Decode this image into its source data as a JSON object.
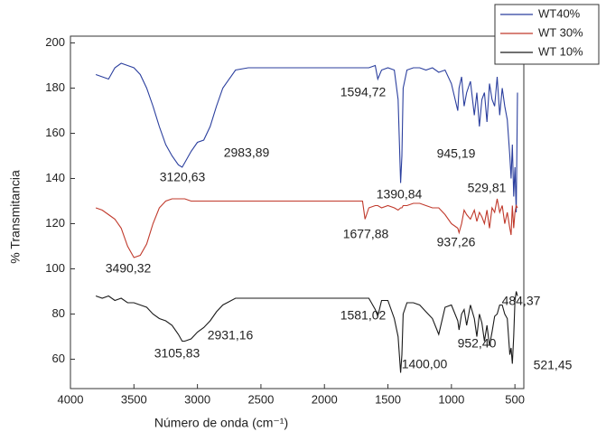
{
  "chart_data": {
    "type": "line",
    "x_label": "Número de onda (cm⁻¹)",
    "y_label": "% Transmitancia",
    "x": [
      3800,
      3750,
      3700,
      3650,
      3600,
      3550,
      3500,
      3450,
      3400,
      3350,
      3300,
      3250,
      3200,
      3150,
      3120,
      3100,
      3050,
      3000,
      2950,
      2900,
      2850,
      2800,
      2700,
      2600,
      2400,
      2200,
      2000,
      1800,
      1700,
      1680,
      1650,
      1600,
      1580,
      1550,
      1500,
      1450,
      1420,
      1400,
      1390,
      1380,
      1350,
      1300,
      1250,
      1200,
      1150,
      1100,
      1050,
      1000,
      950,
      940,
      920,
      900,
      880,
      850,
      820,
      800,
      780,
      760,
      740,
      720,
      700,
      680,
      660,
      640,
      620,
      600,
      580,
      560,
      540,
      530,
      520,
      510,
      500,
      490,
      480
    ],
    "series": [
      {
        "name": "WT40%",
        "color": "#2b3f9e",
        "values": [
          186,
          185,
          184,
          189,
          191,
          190,
          189,
          186,
          180,
          172,
          163,
          155,
          150,
          146,
          145,
          147,
          152,
          156,
          157,
          163,
          172,
          180,
          188,
          189,
          189,
          189,
          189,
          189,
          189,
          189,
          189,
          190,
          184,
          188,
          189,
          188,
          175,
          138,
          150,
          180,
          188,
          189,
          189,
          188,
          189,
          187,
          188,
          182,
          170,
          180,
          185,
          172,
          178,
          183,
          168,
          178,
          163,
          175,
          178,
          165,
          182,
          175,
          172,
          185,
          168,
          180,
          172,
          166,
          150,
          140,
          155,
          132,
          145,
          125,
          178
        ]
      },
      {
        "name": "WT 30%",
        "color": "#c0392b",
        "values": [
          127,
          126,
          124,
          122,
          118,
          110,
          105,
          106,
          111,
          120,
          127,
          130,
          131,
          131,
          131,
          131,
          130,
          130,
          130,
          130,
          130,
          130,
          130,
          130,
          130,
          130,
          130,
          130,
          130,
          122,
          127,
          128,
          128,
          127,
          128,
          127,
          126,
          127,
          127,
          128,
          128,
          129,
          129,
          128,
          127,
          127,
          124,
          120,
          118,
          116,
          120,
          126,
          124,
          122,
          126,
          121,
          125,
          123,
          120,
          126,
          118,
          127,
          125,
          131,
          125,
          128,
          120,
          125,
          118,
          115,
          128,
          118,
          125,
          128,
          127
        ]
      },
      {
        "name": "WT 10%",
        "color": "#1a1a1a",
        "values": [
          88,
          87,
          88,
          86,
          87,
          85,
          85,
          84,
          83,
          80,
          78,
          77,
          75,
          71,
          68,
          68,
          69,
          72,
          74,
          77,
          81,
          84,
          87,
          87,
          87,
          87,
          87,
          87,
          87,
          87,
          87,
          82,
          79,
          86,
          86,
          78,
          70,
          54,
          62,
          80,
          85,
          85,
          84,
          81,
          78,
          71,
          83,
          84,
          77,
          73,
          80,
          82,
          75,
          84,
          78,
          70,
          80,
          76,
          68,
          75,
          66,
          72,
          79,
          80,
          84,
          84,
          80,
          78,
          62,
          65,
          58,
          70,
          86,
          90,
          88
        ]
      }
    ],
    "xlim": [
      4000,
      430
    ],
    "xticks": [
      4000,
      3500,
      3000,
      2500,
      2000,
      1500,
      1000,
      500
    ],
    "ylim": [
      47,
      203
    ],
    "yticks": [
      60,
      80,
      100,
      120,
      140,
      160,
      180,
      200
    ],
    "legend": "top-right",
    "annotations": [
      "2983,89",
      "3120,63",
      "1594,72",
      "945,19",
      "1390,84",
      "529,81",
      "1677,88",
      "937,26",
      "3490,32",
      "484,37",
      "1581,02",
      "2931,16",
      "952,40",
      "3105,83",
      "1400,00",
      "521,45"
    ]
  }
}
